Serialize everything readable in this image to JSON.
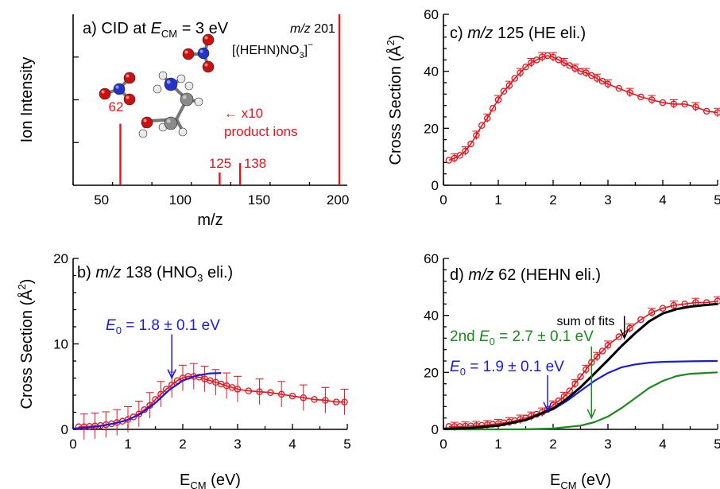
{
  "colors": {
    "data_red": "#e8141c",
    "fit_blue": "#1a1ae6",
    "fit_green": "#1a8a1a",
    "sum_black": "#000000",
    "axis": "#000000",
    "atom_red": "#cc1010",
    "atom_blue": "#2233cc",
    "atom_grey": "#8a8a8a",
    "atom_white": "#e8e8e8"
  },
  "chart_data": [
    {
      "id": "a",
      "type": "bar",
      "panel_prefix": "a) CID at ",
      "panel_E": "E",
      "panel_sub": "CM",
      "panel_suffix": " = 3 eV",
      "parent_mz_italic": "m/z",
      "parent_mz_value": " 201",
      "parent_formula": "[(HEHN)NO",
      "parent_formula_sub": "3",
      "parent_formula_end": "]",
      "parent_formula_sup": "−",
      "note_arrow": "← x10",
      "note_text": "product ions",
      "xlabel": "m/z",
      "ylabel": "Ion Intensity",
      "xlim": [
        32,
        206
      ],
      "ylim": [
        0,
        1
      ],
      "xticks": [
        50,
        100,
        150,
        200
      ],
      "peaks": [
        {
          "x": 62,
          "y": 0.36,
          "label": "62"
        },
        {
          "x": 125,
          "y": 0.075,
          "label": "125"
        },
        {
          "x": 138,
          "y": 0.13,
          "label": "138"
        },
        {
          "x": 201,
          "y": 1.0,
          "label": ""
        }
      ]
    },
    {
      "id": "b",
      "type": "scatter",
      "panel_prefix": "b) ",
      "panel_mz": "m/z",
      "panel_mid": " 138 (HNO",
      "panel_sub": "3",
      "panel_suffix": " eli.)",
      "xlabel": "E",
      "xlabel_sub": "CM",
      "xlabel_unit": " (eV)",
      "ylabel_main": "Cross Section (Å",
      "ylabel_sup": "2",
      "ylabel_end": ")",
      "xlim": [
        0,
        5
      ],
      "ylim": [
        0,
        20
      ],
      "xticks": [
        0,
        1,
        2,
        3,
        4,
        5
      ],
      "yticks": [
        0,
        10,
        20
      ],
      "annotations": [
        {
          "E": "E",
          "sub": "0",
          "text": " = 1.8 ± 0.1 eV",
          "color": "blue",
          "arrow_x": 1.8,
          "arrow_y": 6.0
        }
      ],
      "series": [
        {
          "role": "data",
          "x": [
            0.1,
            0.2,
            0.3,
            0.4,
            0.5,
            0.6,
            0.7,
            0.8,
            0.9,
            1.0,
            1.1,
            1.2,
            1.3,
            1.4,
            1.5,
            1.6,
            1.7,
            1.8,
            1.9,
            2.0,
            2.1,
            2.2,
            2.3,
            2.4,
            2.5,
            2.6,
            2.7,
            2.8,
            2.9,
            3.0,
            3.2,
            3.4,
            3.6,
            3.8,
            4.0,
            4.2,
            4.4,
            4.6,
            4.8,
            4.95
          ],
          "y": [
            0.3,
            0.3,
            0.35,
            0.4,
            0.45,
            0.55,
            0.65,
            0.8,
            0.95,
            1.15,
            1.45,
            1.8,
            2.3,
            2.8,
            3.5,
            4.1,
            4.7,
            5.2,
            5.7,
            6.0,
            6.2,
            6.2,
            6.1,
            5.9,
            5.7,
            5.5,
            5.3,
            5.1,
            4.9,
            4.7,
            4.5,
            4.4,
            4.3,
            4.1,
            3.9,
            3.7,
            3.5,
            3.4,
            3.2,
            3.2
          ]
        },
        {
          "role": "fit",
          "x": [
            0,
            0.25,
            0.5,
            0.75,
            1.0,
            1.25,
            1.5,
            1.75,
            2.0,
            2.25,
            2.5,
            2.7
          ],
          "y": [
            0.1,
            0.2,
            0.4,
            0.7,
            1.1,
            1.9,
            3.1,
            4.6,
            5.7,
            6.3,
            6.55,
            6.6
          ]
        }
      ]
    },
    {
      "id": "c",
      "type": "line",
      "panel_prefix": "c) ",
      "panel_mz": "m/z",
      "panel_mid": " 125 (HE eli.)",
      "xlabel": "",
      "ylabel_main": "Cross Section (Å",
      "ylabel_sup": "2",
      "ylabel_end": ")",
      "xlim": [
        0,
        5
      ],
      "ylim": [
        0,
        60
      ],
      "xticks": [
        0,
        1,
        2,
        3,
        4,
        5
      ],
      "yticks": [
        0,
        20,
        40,
        60
      ],
      "series": [
        {
          "role": "data",
          "x": [
            0.1,
            0.2,
            0.3,
            0.4,
            0.5,
            0.6,
            0.7,
            0.8,
            0.9,
            1.0,
            1.1,
            1.2,
            1.3,
            1.4,
            1.5,
            1.6,
            1.7,
            1.8,
            1.9,
            2.0,
            2.1,
            2.2,
            2.3,
            2.4,
            2.5,
            2.6,
            2.7,
            2.8,
            2.9,
            3.0,
            3.2,
            3.4,
            3.6,
            3.8,
            4.0,
            4.2,
            4.4,
            4.6,
            4.8,
            5.0
          ],
          "y": [
            8.8,
            9.5,
            10.5,
            12.0,
            14.5,
            17.5,
            21.0,
            23.5,
            27.0,
            30.0,
            33.0,
            35.0,
            37.5,
            39.5,
            41.5,
            43.0,
            44.0,
            45.0,
            45.5,
            45.0,
            44.0,
            43.0,
            42.0,
            41.0,
            40.0,
            39.5,
            38.5,
            37.5,
            36.5,
            35.5,
            34.0,
            32.5,
            31.0,
            30.0,
            29.0,
            28.5,
            28.5,
            27.5,
            26.0,
            25.5
          ]
        }
      ]
    },
    {
      "id": "d",
      "type": "line",
      "panel_prefix": "d) ",
      "panel_mz": "m/z",
      "panel_mid": " 62 (HEHN eli.)",
      "xlabel": "E",
      "xlabel_sub": "CM",
      "xlabel_unit": " (eV)",
      "ylabel_main": "",
      "xlim": [
        0,
        5
      ],
      "ylim": [
        0,
        60
      ],
      "xticks": [
        0,
        1,
        2,
        3,
        4,
        5
      ],
      "yticks": [
        0,
        20,
        40,
        60
      ],
      "annotations": [
        {
          "text": "sum of fits",
          "color": "black",
          "arrow_x": 3.3,
          "arrow_y": 32.0
        },
        {
          "prefix": "2nd ",
          "E": "E",
          "sub": "0",
          "text": " = 2.7 ± 0.1 eV",
          "color": "green",
          "arrow_x": 2.7,
          "arrow_y": 4.0
        },
        {
          "E": "E",
          "sub": "0",
          "text": " = 1.9 ± 0.1 eV",
          "color": "blue",
          "arrow_x": 1.9,
          "arrow_y": 6.5
        }
      ],
      "series": [
        {
          "role": "data",
          "x": [
            0.1,
            0.2,
            0.3,
            0.4,
            0.5,
            0.6,
            0.7,
            0.8,
            0.9,
            1.0,
            1.1,
            1.2,
            1.3,
            1.4,
            1.5,
            1.6,
            1.7,
            1.8,
            1.9,
            2.0,
            2.1,
            2.2,
            2.3,
            2.4,
            2.5,
            2.6,
            2.7,
            2.8,
            2.9,
            3.0,
            3.2,
            3.4,
            3.6,
            3.8,
            4.0,
            4.2,
            4.4,
            4.6,
            4.8,
            5.0
          ],
          "y": [
            1.0,
            1.0,
            1.0,
            1.1,
            1.2,
            1.3,
            1.4,
            1.6,
            1.8,
            2.0,
            2.3,
            2.6,
            3.0,
            3.5,
            4.0,
            4.6,
            5.3,
            6.0,
            7.0,
            8.5,
            10.0,
            11.5,
            13.5,
            16.0,
            18.5,
            21.0,
            23.5,
            25.5,
            27.5,
            29.5,
            32.5,
            35.5,
            38.5,
            41.0,
            42.5,
            43.5,
            44.0,
            44.5,
            44.5,
            45.0
          ]
        },
        {
          "role": "fit_blue",
          "x": [
            0,
            0.5,
            1.0,
            1.5,
            2.0,
            2.25,
            2.5,
            2.75,
            3.0,
            3.25,
            3.5,
            3.75,
            4.0,
            4.5,
            5.0
          ],
          "y": [
            0.2,
            0.5,
            1.3,
            3.2,
            7.0,
            10.0,
            13.5,
            17.0,
            19.8,
            21.8,
            22.8,
            23.4,
            23.7,
            23.9,
            24.0
          ]
        },
        {
          "role": "fit_green",
          "x": [
            0,
            1.0,
            1.5,
            2.0,
            2.5,
            2.75,
            3.0,
            3.25,
            3.5,
            3.75,
            4.0,
            4.25,
            4.5,
            5.0
          ],
          "y": [
            0,
            0,
            0.05,
            0.3,
            1.3,
            2.5,
            4.5,
            7.5,
            11.0,
            14.5,
            17.0,
            18.7,
            19.5,
            20.0
          ]
        },
        {
          "role": "sum",
          "x": [
            0,
            0.5,
            1.0,
            1.5,
            2.0,
            2.25,
            2.5,
            2.75,
            3.0,
            3.25,
            3.5,
            3.75,
            4.0,
            4.25,
            4.5,
            4.75,
            5.0
          ],
          "y": [
            0.2,
            0.5,
            1.3,
            3.3,
            7.3,
            10.7,
            14.8,
            19.5,
            24.3,
            29.3,
            33.8,
            37.9,
            40.7,
            42.2,
            43.1,
            43.6,
            44.0
          ]
        }
      ]
    }
  ]
}
